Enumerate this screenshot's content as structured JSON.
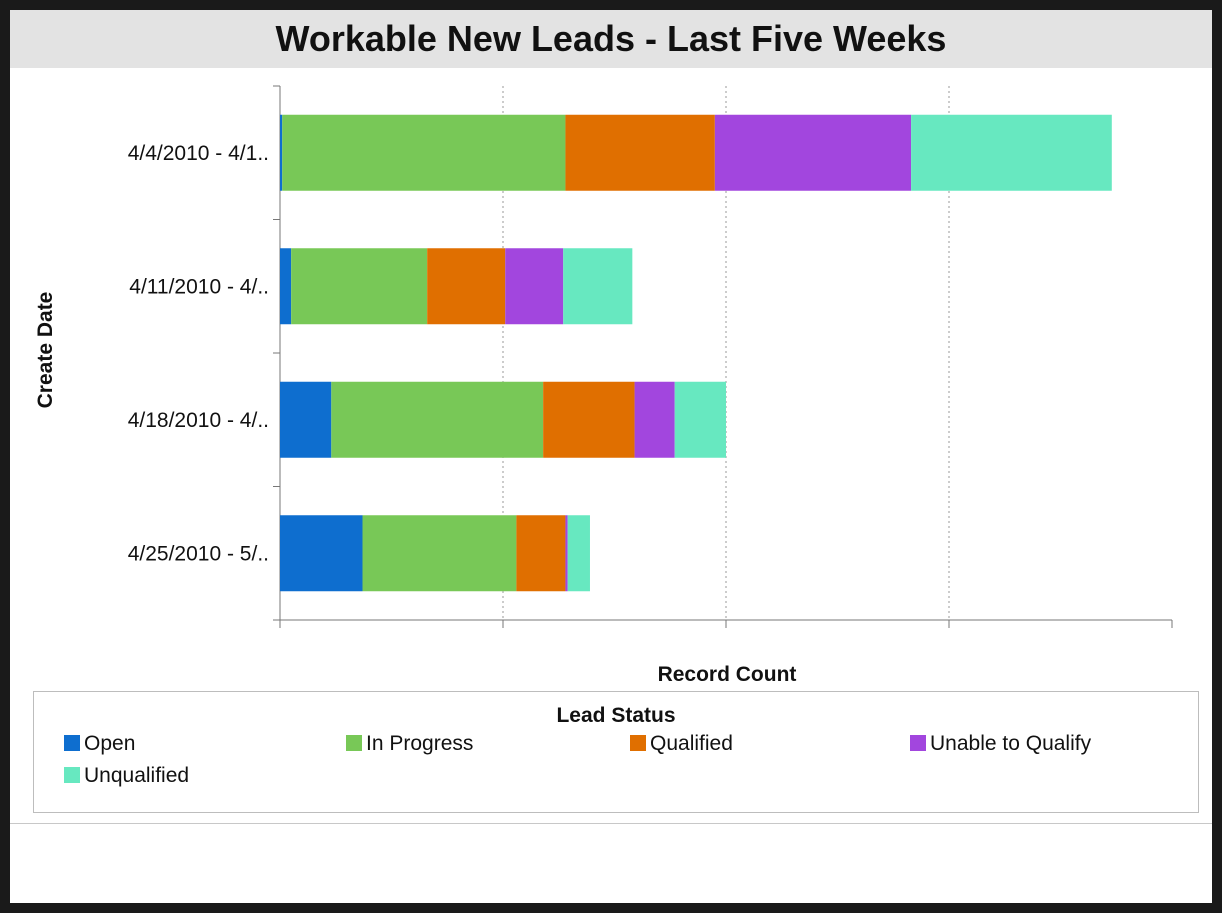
{
  "chart_data": {
    "type": "bar",
    "orientation": "horizontal",
    "stacked": true,
    "title": "Workable New Leads - Last Five Weeks",
    "xlabel": "Record Count",
    "ylabel": "Create Date",
    "categories": [
      "4/4/2010 - 4/1..",
      "4/11/2010 - 4/..",
      "4/18/2010 - 4/..",
      "4/25/2010 - 5/.."
    ],
    "xlim": [
      0,
      400
    ],
    "x_gridlines": [
      100,
      200,
      300
    ],
    "x_tick_labels_shown": false,
    "series": [
      {
        "name": "Open",
        "color": "#0e6ecf",
        "values": [
          1,
          5,
          23,
          37
        ]
      },
      {
        "name": "In Progress",
        "color": "#78c857",
        "values": [
          127,
          61,
          95,
          69
        ]
      },
      {
        "name": "Qualified",
        "color": "#e06f00",
        "values": [
          67,
          35,
          41,
          22
        ]
      },
      {
        "name": "Unable to Qualify",
        "color": "#a246de",
        "values": [
          88,
          26,
          18,
          1
        ]
      },
      {
        "name": "Unqualified",
        "color": "#67e8c0",
        "values": [
          90,
          31,
          23,
          10
        ]
      }
    ],
    "legend": {
      "title": "Lead Status",
      "position": "bottom"
    }
  }
}
